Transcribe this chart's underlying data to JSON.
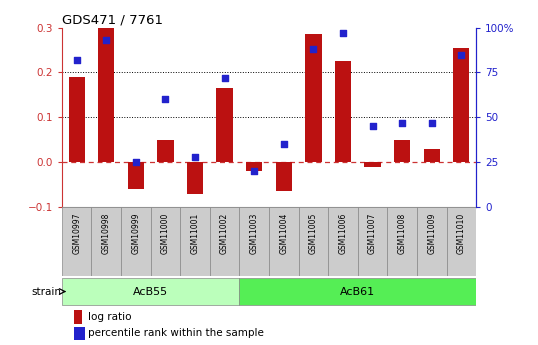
{
  "title": "GDS471 / 7761",
  "samples": [
    "GSM10997",
    "GSM10998",
    "GSM10999",
    "GSM11000",
    "GSM11001",
    "GSM11002",
    "GSM11003",
    "GSM11004",
    "GSM11005",
    "GSM11006",
    "GSM11007",
    "GSM11008",
    "GSM11009",
    "GSM11010"
  ],
  "log_ratio": [
    0.19,
    0.3,
    -0.06,
    0.05,
    -0.07,
    0.165,
    -0.02,
    -0.065,
    0.285,
    0.225,
    -0.01,
    0.05,
    0.03,
    0.255
  ],
  "percentile": [
    82,
    93,
    25,
    60,
    28,
    72,
    20,
    35,
    88,
    97,
    45,
    47,
    47,
    85
  ],
  "ylim_left": [
    -0.1,
    0.3
  ],
  "ylim_right": [
    0,
    100
  ],
  "yticks_left": [
    -0.1,
    0.0,
    0.1,
    0.2,
    0.3
  ],
  "yticks_right": [
    0,
    25,
    50,
    75,
    100
  ],
  "hlines": [
    0.1,
    0.2
  ],
  "bar_color": "#bb1111",
  "scatter_color": "#2222cc",
  "zero_line_color": "#cc3333",
  "grid_line_color": "#000000",
  "bg_color": "#ffffff",
  "strain_groups": [
    {
      "label": "AcB55",
      "start": 0,
      "end": 5,
      "color": "#bbffbb"
    },
    {
      "label": "AcB61",
      "start": 6,
      "end": 13,
      "color": "#55ee55"
    }
  ],
  "strain_label": "strain",
  "legend_log_ratio": "log ratio",
  "legend_percentile": "percentile rank within the sample",
  "right_axis_color": "#2222cc",
  "left_axis_color": "#cc3333",
  "right_ylabel_suffix": "%",
  "sample_box_color": "#cccccc",
  "sample_box_edge": "#888888"
}
